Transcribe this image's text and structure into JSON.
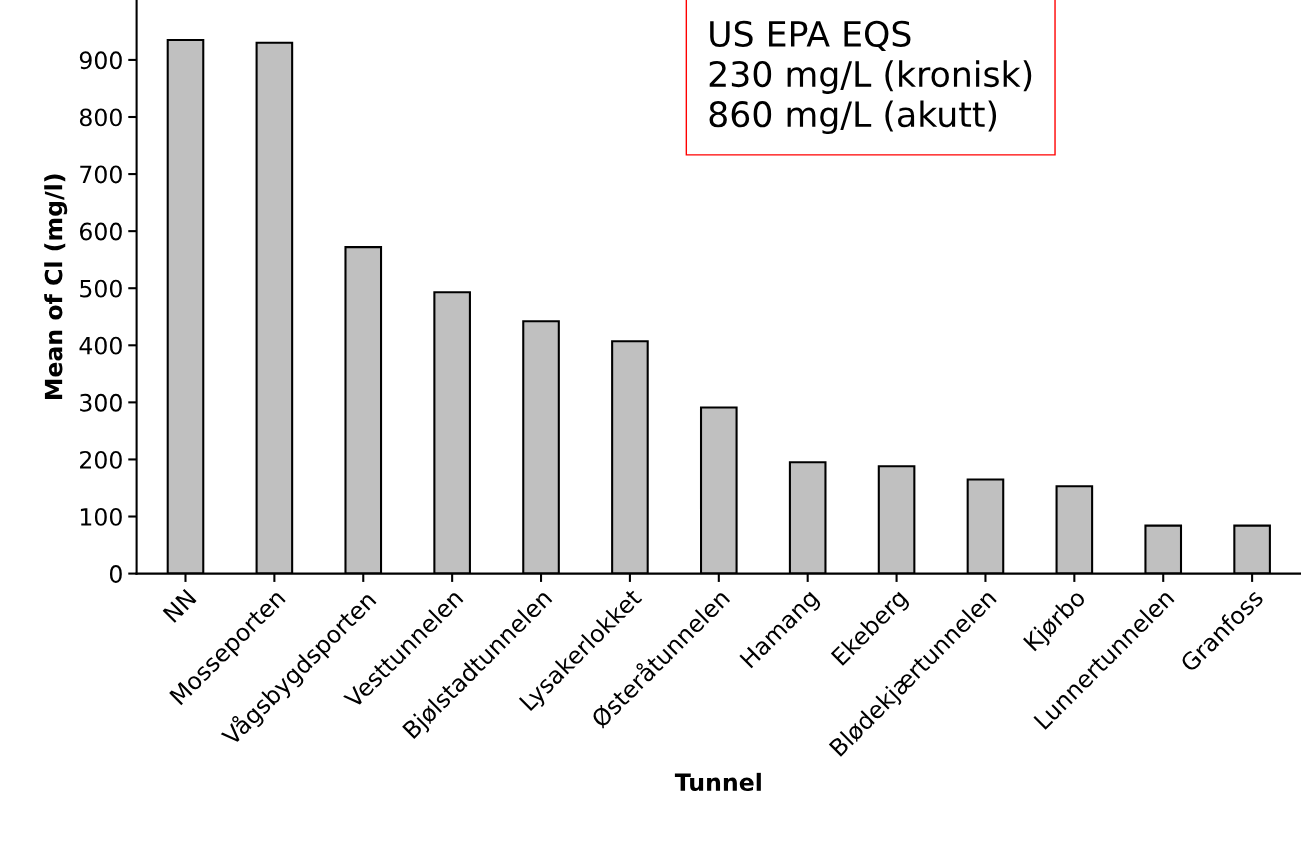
{
  "chart_data": {
    "type": "bar",
    "xlabel": "Tunnel",
    "ylabel": "Mean of Cl (mg/l)",
    "categories": [
      "NN",
      "Mosseporten",
      "Vågsbygdsporten",
      "Vesttunnelen",
      "Bjølstadtunnelen",
      "Lysakerlokket",
      "Østeråtunnelen",
      "Hamang",
      "Ekeberg",
      "Blødekjærtunnelen",
      "Kjørbo",
      "Lunnertunnelen",
      "Granfoss"
    ],
    "values": [
      935,
      930,
      572,
      493,
      442,
      407,
      291,
      195,
      188,
      165,
      153,
      84,
      84
    ],
    "color": "#c0c0c0",
    "ylim": [
      0,
      1005
    ],
    "yticks": [
      0,
      100,
      200,
      300,
      400,
      500,
      600,
      700,
      800,
      900
    ],
    "annotations": [
      "US EPA EQS\n230 mg/L (kronisk)\n860 mg/L (akutt)"
    ],
    "grid": false,
    "legend": false
  }
}
